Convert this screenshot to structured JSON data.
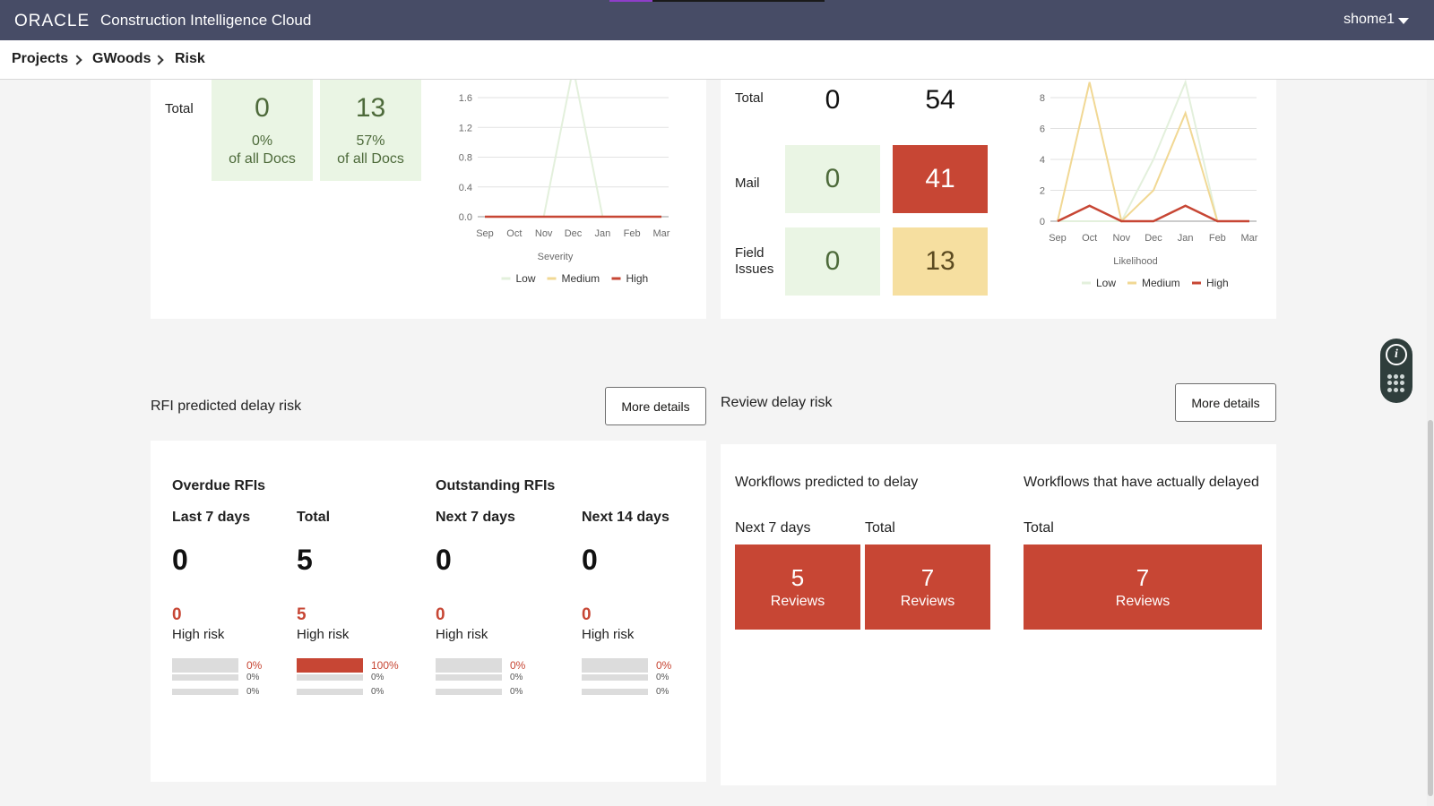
{
  "header": {
    "logo": "ORACLE",
    "app_title": "Construction Intelligence Cloud",
    "user": "shome1"
  },
  "breadcrumb": [
    "Projects",
    "GWoods",
    "Risk"
  ],
  "docs_card": {
    "total_label": "Total",
    "tiles": [
      {
        "value": "0",
        "pct": "0%",
        "sub": "of all Docs"
      },
      {
        "value": "13",
        "pct": "57%",
        "sub": "of all Docs"
      }
    ]
  },
  "comms_card": {
    "rows": [
      {
        "label": "Total",
        "low": "0",
        "high": "54"
      },
      {
        "label": "Mail",
        "low": "0",
        "high": "41"
      },
      {
        "label": "Field Issues",
        "low": "0",
        "high": "13"
      }
    ]
  },
  "chart_data": [
    {
      "type": "line",
      "x": [
        "Sep",
        "Oct",
        "Nov",
        "Dec",
        "Jan",
        "Feb",
        "Mar"
      ],
      "xlabel": "Severity",
      "yticks": [
        "0.0",
        "0.4",
        "0.8",
        "1.2",
        "1.6"
      ],
      "ylim": [
        0,
        1.6
      ],
      "series": [
        {
          "name": "Low",
          "color": "#e3f0dc",
          "values": [
            0,
            0,
            0,
            2,
            0,
            0,
            0
          ]
        },
        {
          "name": "Medium",
          "color": "#f1d894",
          "values": [
            0,
            0,
            0,
            0,
            0,
            0,
            0
          ]
        },
        {
          "name": "High",
          "color": "#c74634",
          "values": [
            0,
            0,
            0,
            0,
            0,
            0,
            0
          ]
        }
      ],
      "legend": "bottom"
    },
    {
      "type": "line",
      "x": [
        "Sep",
        "Oct",
        "Nov",
        "Dec",
        "Jan",
        "Feb",
        "Mar"
      ],
      "xlabel": "Likelihood",
      "yticks": [
        "0",
        "2",
        "4",
        "6",
        "8"
      ],
      "ylim": [
        0,
        8
      ],
      "series": [
        {
          "name": "Low",
          "color": "#e3f0dc",
          "values": [
            0,
            0,
            0,
            4,
            9,
            0,
            0
          ]
        },
        {
          "name": "Medium",
          "color": "#f1d894",
          "values": [
            0,
            9,
            0,
            2,
            7,
            0,
            0
          ]
        },
        {
          "name": "High",
          "color": "#c74634",
          "values": [
            0,
            1,
            0,
            0,
            1,
            0,
            0
          ]
        }
      ],
      "legend": "bottom"
    }
  ],
  "rfi": {
    "title": "RFI predicted delay risk",
    "more": "More details",
    "group1": "Overdue RFIs",
    "group2": "Outstanding RFIs",
    "cols": [
      {
        "label": "Last 7 days",
        "value": "0",
        "high": "0",
        "risk": "High risk",
        "fill": 0,
        "p1": "0%",
        "p2": "0%",
        "p3": "0%"
      },
      {
        "label": "Total",
        "value": "5",
        "high": "5",
        "risk": "High risk",
        "fill": 1,
        "p1": "100%",
        "p2": "0%",
        "p3": "0%"
      },
      {
        "label": "Next 7 days",
        "value": "0",
        "high": "0",
        "risk": "High risk",
        "fill": 0,
        "p1": "0%",
        "p2": "0%",
        "p3": "0%"
      },
      {
        "label": "Next 14 days",
        "value": "0",
        "high": "0",
        "risk": "High risk",
        "fill": 0,
        "p1": "0%",
        "p2": "0%",
        "p3": "0%"
      }
    ]
  },
  "review": {
    "title": "Review delay risk",
    "more": "More details",
    "pred_title": "Workflows predicted to delay",
    "actual_title": "Workflows that have actually delayed",
    "next7": "Next 7 days",
    "total": "Total",
    "total2": "Total",
    "tiles": [
      {
        "n": "5",
        "t": "Reviews"
      },
      {
        "n": "7",
        "t": "Reviews"
      },
      {
        "n": "7",
        "t": "Reviews"
      }
    ]
  }
}
